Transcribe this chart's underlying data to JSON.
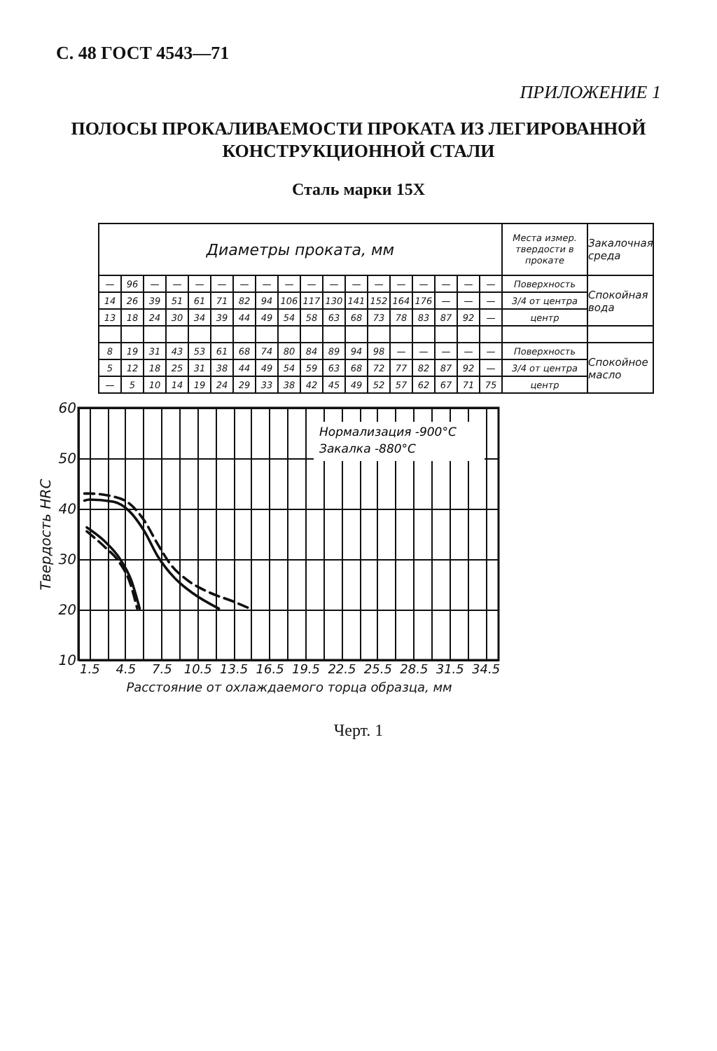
{
  "chart_data": {
    "type": "line",
    "title": "ПОЛОСЫ ПРОКАЛИВАЕМОСТИ ПРОКАТА ИЗ ЛЕГИРОВАННОЙ КОНСТРУКЦИОННОЙ СТАЛИ",
    "subtitle": "Сталь марки 15Х",
    "xlabel": "Расстояние от охлаждаемого торца образца, мм",
    "ylabel": "Твердость HRC",
    "xlim": [
      0.6,
      35.6
    ],
    "ylim": [
      10,
      60
    ],
    "xticks": [
      1.5,
      {
        "value": 3,
        "label": null
      },
      4.5,
      {
        "value": 6,
        "label": null
      },
      7.5,
      {
        "value": 9,
        "label": null
      },
      10.5,
      {
        "value": 12,
        "label": null
      },
      13.5,
      {
        "value": 15,
        "label": null
      },
      16.5,
      {
        "value": 18,
        "label": null
      },
      19.5,
      {
        "value": 21,
        "label": null
      },
      22.5,
      {
        "value": 24,
        "label": null
      },
      25.5,
      {
        "value": 27,
        "label": null
      },
      28.5,
      {
        "value": 30,
        "label": null
      },
      31.5,
      {
        "value": 33,
        "label": null
      },
      34.5
    ],
    "yticks": [
      10,
      20,
      30,
      40,
      50,
      60
    ],
    "grid": true,
    "series": [
      {
        "color": "#111111",
        "line_style": "dashed",
        "x": [
          1.1,
          1.5,
          3.5,
          4.8,
          6.1,
          7.2,
          8.3,
          9.7,
          11.6,
          13.4,
          14.9
        ],
        "values": [
          43,
          43,
          42.4,
          41.1,
          37.6,
          33,
          28.9,
          25.8,
          23.3,
          21.7,
          20.2
        ]
      },
      {
        "color": "#111111",
        "line_style": "solid",
        "x": [
          1.1,
          1.5,
          3.5,
          4.8,
          6.1,
          7.2,
          8.6,
          10.1,
          12.3
        ],
        "values": [
          41.6,
          41.8,
          41.4,
          39.6,
          35.5,
          30.6,
          26.3,
          23.3,
          20.2
        ]
      },
      {
        "color": "#111111",
        "line_style": "solid",
        "x": [
          1.3,
          2.8,
          4.1,
          5,
          5.7
        ],
        "values": [
          36.3,
          33.5,
          29.9,
          25.8,
          20.2
        ]
      },
      {
        "color": "#111111",
        "line_style": "dashed",
        "x": [
          1.3,
          2.8,
          4,
          4.9,
          5.5
        ],
        "values": [
          35.5,
          32.4,
          29.4,
          25.3,
          20.2
        ]
      }
    ],
    "annotations": [
      "С. 48 ГОСТ 4543—71",
      "ПРИЛОЖЕНИЕ 1",
      "Диаметры проката, мм",
      "Места измер. твердости в прокате",
      "Закалочная среда",
      "— 96 — — — — — — — — — — — — — — — —",
      "14 26 39 51 61 71 82 94 106 117 130 141 152 164 176 — — —",
      "13 18 24 30 34 39 44 49 54 58 63 68 73 78 83 87 92 —",
      "8 19 31 43 53 61 68 74 80 84 89 94 98 — — — — —",
      "5 12 18 25 31 38 44 49 54 59 63 68 72 77 82 87 92 —",
      "— 5 10 14 19 24 29 33 38 42 45 49 52 57 62 67 71 75",
      "Поверхность",
      "3/4 от центра",
      "центр",
      "Поверхность",
      "3/4 от центра",
      "центр",
      "Спокойная вода",
      "Спокойное масло",
      "Нормализация -900°C",
      "Закалка -880°C",
      "Черт. 1"
    ]
  }
}
